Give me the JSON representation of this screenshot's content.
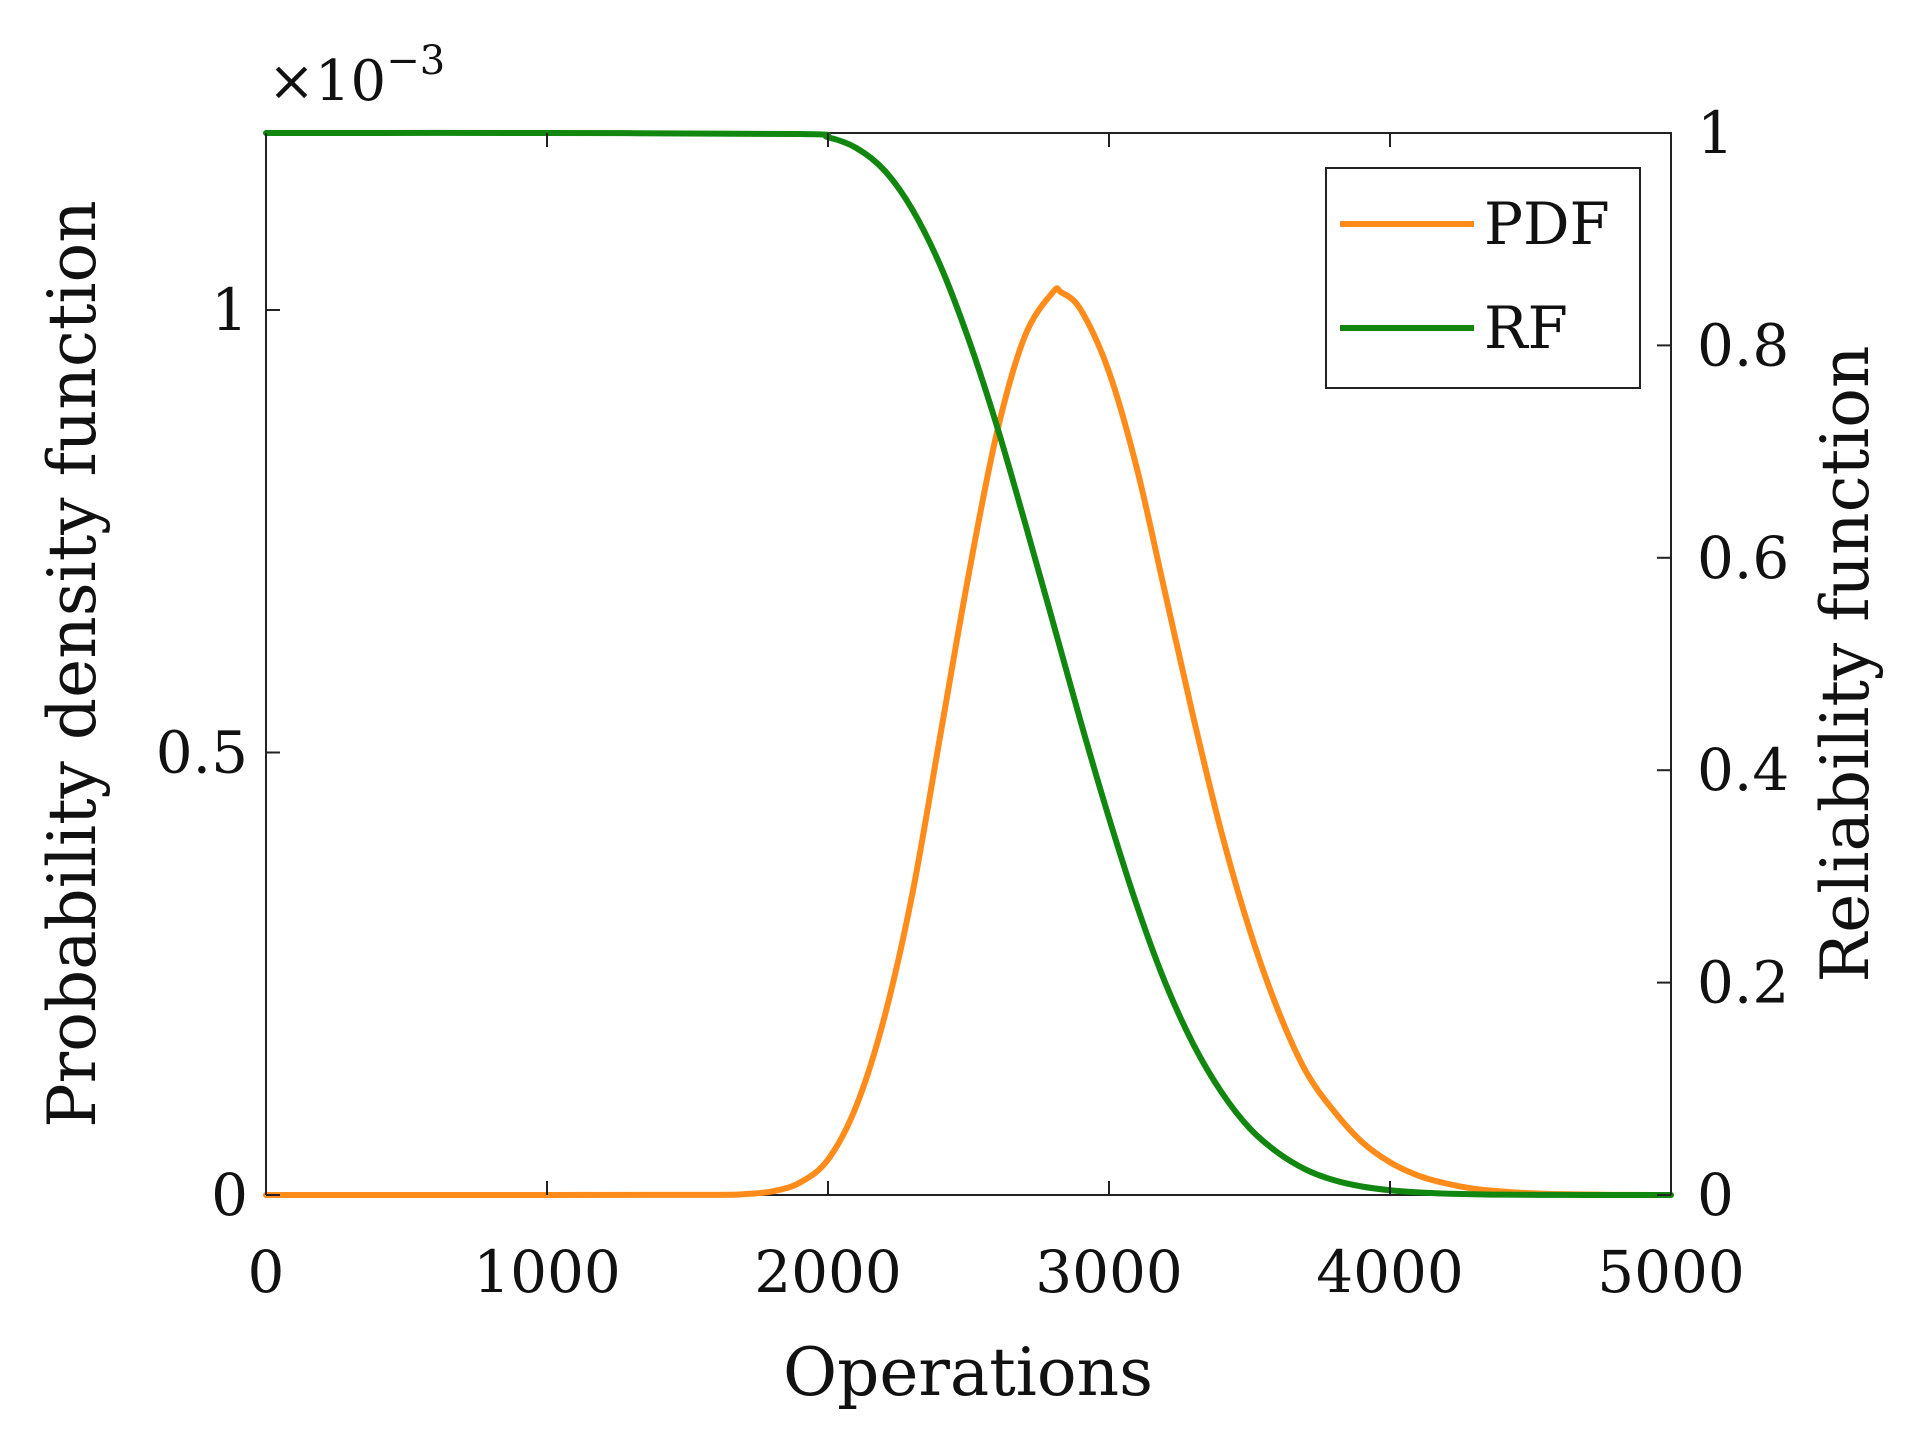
{
  "chart_data": {
    "type": "line",
    "title": "",
    "xlabel": "Operations",
    "ylabel_left": "Probability density function",
    "ylabel_right": "Reliability function",
    "left_axis_multiplier": {
      "base": "×10",
      "exponent": "−3"
    },
    "xlim": [
      0,
      5000
    ],
    "ylim_left": [
      0,
      1.2
    ],
    "ylim_right": [
      0,
      1
    ],
    "x_ticks": [
      0,
      1000,
      2000,
      3000,
      4000,
      5000
    ],
    "x_tick_labels": [
      "0",
      "1000",
      "2000",
      "3000",
      "4000",
      "5000"
    ],
    "y_left_ticks": [
      0,
      0.5,
      1
    ],
    "y_left_tick_labels": [
      "0",
      "0.5",
      "1"
    ],
    "y_right_ticks": [
      0,
      0.2,
      0.4,
      0.6,
      0.8,
      1
    ],
    "y_right_tick_labels": [
      "0",
      "0.2",
      "0.4",
      "0.6",
      "0.8",
      "1"
    ],
    "legend": {
      "position": "top-right",
      "entries": [
        "PDF",
        "RF"
      ]
    },
    "grid": false,
    "series": [
      {
        "name": "PDF",
        "axis": "left",
        "color": "#FF8C1A",
        "x": [
          0,
          1000,
          1600,
          1700,
          1800,
          1900,
          2000,
          2100,
          2200,
          2300,
          2400,
          2500,
          2600,
          2700,
          2800,
          2830,
          2900,
          3000,
          3100,
          3200,
          3300,
          3400,
          3500,
          3600,
          3700,
          3800,
          3900,
          4000,
          4100,
          4200,
          4300,
          4400,
          4500,
          4600,
          4800,
          5000
        ],
        "values": [
          0,
          0,
          0.0002,
          0.001,
          0.004,
          0.014,
          0.04,
          0.1,
          0.2,
          0.34,
          0.52,
          0.7,
          0.86,
          0.97,
          1.02,
          1.02,
          1.0,
          0.93,
          0.82,
          0.68,
          0.54,
          0.41,
          0.3,
          0.21,
          0.14,
          0.095,
          0.06,
          0.037,
          0.022,
          0.013,
          0.007,
          0.004,
          0.002,
          0.001,
          0.0002,
          0.0
        ]
      },
      {
        "name": "RF",
        "axis": "right",
        "color": "#11870F",
        "x": [
          0,
          1000,
          1900,
          2000,
          2100,
          2200,
          2300,
          2400,
          2500,
          2600,
          2700,
          2800,
          2900,
          3000,
          3100,
          3200,
          3300,
          3400,
          3500,
          3600,
          3700,
          3800,
          3900,
          4000,
          4100,
          4200,
          4300,
          4400,
          4600,
          4800,
          5000
        ],
        "values": [
          1,
          1,
          0.999,
          0.996,
          0.986,
          0.965,
          0.928,
          0.875,
          0.806,
          0.725,
          0.634,
          0.54,
          0.445,
          0.355,
          0.272,
          0.2,
          0.142,
          0.097,
          0.063,
          0.04,
          0.024,
          0.014,
          0.008,
          0.0045,
          0.0025,
          0.0013,
          0.0007,
          0.0003,
          0.0001,
          0.0,
          0.0
        ]
      }
    ]
  }
}
